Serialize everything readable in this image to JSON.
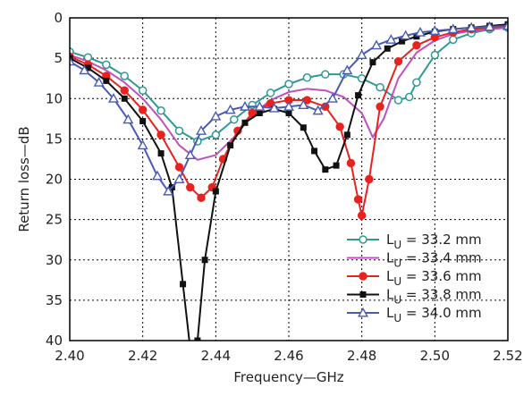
{
  "chart_data": {
    "type": "line",
    "xlabel": "Frequency—GHz",
    "ylabel": "Return loss—dB",
    "xlim": [
      2.4,
      2.52
    ],
    "ylim": [
      40,
      0
    ],
    "x_ticks": [
      "2.40",
      "2.42",
      "2.44",
      "2.46",
      "2.48",
      "2.50",
      "2.52"
    ],
    "y_ticks": [
      "0",
      "5",
      "10",
      "15",
      "20",
      "25",
      "30",
      "35",
      "40"
    ],
    "grid": true,
    "legend_position": "bottom-right",
    "series": [
      {
        "name": "L",
        "sub": "U",
        "value_text": " = 33.2 mm",
        "color": "#2e9a93",
        "marker": "open-circle",
        "x": [
          2.4,
          2.405,
          2.41,
          2.415,
          2.42,
          2.425,
          2.43,
          2.435,
          2.44,
          2.445,
          2.45,
          2.455,
          2.46,
          2.465,
          2.47,
          2.475,
          2.48,
          2.485,
          2.49,
          2.493,
          2.495,
          2.5,
          2.505,
          2.51,
          2.515,
          2.52
        ],
        "y": [
          4.2,
          4.9,
          5.8,
          7.2,
          9.0,
          11.5,
          14.0,
          15.3,
          14.5,
          12.6,
          10.8,
          9.3,
          8.2,
          7.4,
          7.0,
          7.0,
          7.5,
          8.6,
          10.2,
          9.8,
          8.0,
          4.6,
          2.7,
          1.9,
          1.4,
          1.2
        ]
      },
      {
        "name": "L",
        "sub": "U",
        "value_text": " = 33.4 mm",
        "color": "#c04fc0",
        "marker": "none",
        "x": [
          2.4,
          2.405,
          2.41,
          2.415,
          2.42,
          2.425,
          2.43,
          2.435,
          2.44,
          2.445,
          2.45,
          2.455,
          2.46,
          2.465,
          2.47,
          2.475,
          2.48,
          2.483,
          2.486,
          2.49,
          2.495,
          2.5,
          2.505,
          2.51,
          2.515,
          2.52
        ],
        "y": [
          4.6,
          5.4,
          6.5,
          8.0,
          10.0,
          12.6,
          15.8,
          17.6,
          17.0,
          14.8,
          12.0,
          10.2,
          9.2,
          8.8,
          9.0,
          9.8,
          11.8,
          14.8,
          12.5,
          7.5,
          4.3,
          2.8,
          2.0,
          1.6,
          1.4,
          1.2
        ]
      },
      {
        "name": "L",
        "sub": "U",
        "value_text": " = 33.6 mm",
        "color": "#e8221e",
        "marker": "filled-circle",
        "x": [
          2.4,
          2.405,
          2.41,
          2.415,
          2.42,
          2.425,
          2.43,
          2.433,
          2.436,
          2.439,
          2.442,
          2.446,
          2.45,
          2.455,
          2.46,
          2.465,
          2.47,
          2.474,
          2.477,
          2.479,
          2.48,
          2.482,
          2.485,
          2.49,
          2.495,
          2.5,
          2.505,
          2.51,
          2.515,
          2.52
        ],
        "y": [
          4.8,
          5.8,
          7.2,
          9.0,
          11.4,
          14.5,
          18.5,
          21.0,
          22.3,
          21.0,
          17.5,
          14.0,
          11.8,
          10.6,
          10.2,
          10.2,
          11.0,
          13.5,
          18.0,
          22.5,
          24.5,
          20.0,
          11.0,
          5.4,
          3.4,
          2.4,
          1.8,
          1.4,
          1.2,
          1.0
        ]
      },
      {
        "name": "L",
        "sub": "U",
        "value_text": " = 33.8 mm",
        "color": "#111111",
        "marker": "filled-square",
        "x": [
          2.4,
          2.405,
          2.41,
          2.415,
          2.42,
          2.425,
          2.428,
          2.431,
          2.433,
          2.435,
          2.437,
          2.44,
          2.444,
          2.448,
          2.452,
          2.456,
          2.46,
          2.464,
          2.467,
          2.47,
          2.473,
          2.476,
          2.479,
          2.483,
          2.487,
          2.491,
          2.495,
          2.5,
          2.505,
          2.51,
          2.515,
          2.52
        ],
        "y": [
          5.0,
          6.2,
          7.8,
          10.0,
          12.8,
          16.8,
          21.0,
          33.0,
          41.0,
          40.0,
          30.0,
          21.5,
          15.8,
          13.0,
          11.8,
          11.3,
          11.8,
          13.6,
          16.5,
          18.8,
          18.3,
          14.5,
          9.6,
          5.5,
          3.8,
          2.9,
          2.3,
          1.7,
          1.4,
          1.2,
          1.0,
          0.8
        ]
      },
      {
        "name": "L",
        "sub": "U",
        "value_text": " = 34.0 mm",
        "color": "#4a5ab5",
        "marker": "open-triangle",
        "x": [
          2.4,
          2.404,
          2.408,
          2.412,
          2.416,
          2.42,
          2.424,
          2.427,
          2.43,
          2.433,
          2.436,
          2.44,
          2.444,
          2.448,
          2.452,
          2.456,
          2.46,
          2.464,
          2.468,
          2.472,
          2.476,
          2.48,
          2.484,
          2.488,
          2.492,
          2.496,
          2.5,
          2.505,
          2.51,
          2.515,
          2.52
        ],
        "y": [
          5.4,
          6.5,
          8.0,
          10.0,
          12.6,
          15.8,
          19.6,
          21.5,
          20.0,
          17.0,
          14.0,
          12.2,
          11.4,
          11.0,
          11.0,
          11.2,
          11.0,
          10.8,
          11.5,
          10.0,
          6.5,
          4.6,
          3.4,
          2.7,
          2.2,
          1.8,
          1.6,
          1.4,
          1.2,
          1.1,
          1.0
        ]
      }
    ]
  }
}
